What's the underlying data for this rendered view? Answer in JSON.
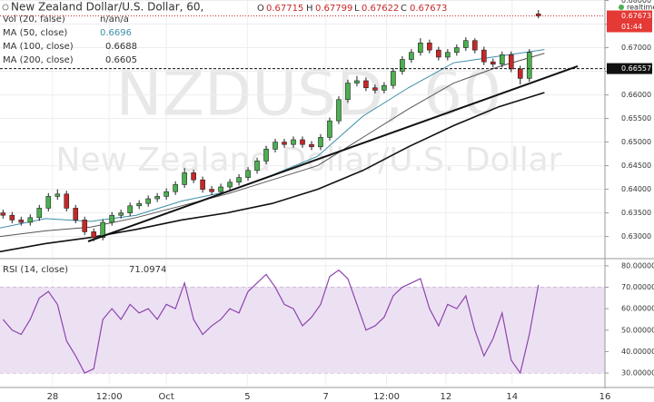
{
  "chart_data": [
    {
      "type": "candlestick",
      "title": "New Zealand Dollar/U.S. Dollar, 60,",
      "ohlc_labels": [
        "O",
        "H",
        "L",
        "C"
      ],
      "volume_label": "Vol (20, false)",
      "volume_values": [
        "n/a",
        "n/a"
      ],
      "realtime": "realtime",
      "watermark": [
        "NZDUSD, 60",
        "New Zealand Dollar/U.S. Dollar"
      ],
      "countdown": "01:44",
      "support_level": 0.66557,
      "up_color": "#4caf50",
      "down_color": "#c62828",
      "x": [
        1,
        4,
        7,
        10,
        13,
        16,
        19,
        22,
        25,
        28,
        31,
        34,
        37,
        40,
        43,
        46,
        49,
        52,
        55,
        58,
        61,
        64,
        67,
        70,
        73,
        76,
        79,
        82,
        85,
        88,
        91,
        94,
        97,
        100,
        103,
        106,
        109,
        112,
        115,
        118,
        121,
        124,
        127,
        130,
        133,
        136,
        139,
        142,
        145,
        148,
        151,
        154,
        157,
        160,
        163,
        166,
        169,
        172,
        175,
        178
      ],
      "open": [
        0.635,
        0.6345,
        0.6335,
        0.633,
        0.634,
        0.636,
        0.6385,
        0.639,
        0.636,
        0.6335,
        0.631,
        0.6298,
        0.633,
        0.6345,
        0.635,
        0.6365,
        0.637,
        0.638,
        0.6385,
        0.6395,
        0.641,
        0.6435,
        0.642,
        0.64,
        0.6395,
        0.6405,
        0.6415,
        0.6425,
        0.644,
        0.646,
        0.6485,
        0.65,
        0.6495,
        0.6505,
        0.6495,
        0.649,
        0.651,
        0.6545,
        0.659,
        0.6625,
        0.663,
        0.6615,
        0.661,
        0.662,
        0.665,
        0.6675,
        0.669,
        0.671,
        0.6695,
        0.668,
        0.669,
        0.67,
        0.6715,
        0.6695,
        0.667,
        0.6665,
        0.6685,
        0.6655,
        0.6635,
        0.67715
      ],
      "high": [
        0.6357,
        0.6352,
        0.6342,
        0.6347,
        0.6367,
        0.6392,
        0.64,
        0.6397,
        0.6367,
        0.6342,
        0.6317,
        0.6337,
        0.6352,
        0.6357,
        0.6372,
        0.6377,
        0.6387,
        0.6392,
        0.6402,
        0.6417,
        0.6445,
        0.6442,
        0.6427,
        0.6407,
        0.6412,
        0.6422,
        0.6432,
        0.6447,
        0.6467,
        0.6492,
        0.6507,
        0.6507,
        0.6512,
        0.6512,
        0.6502,
        0.6517,
        0.6552,
        0.6597,
        0.6632,
        0.664,
        0.6637,
        0.6622,
        0.6627,
        0.6657,
        0.6682,
        0.6697,
        0.672,
        0.6717,
        0.6702,
        0.6697,
        0.6707,
        0.6722,
        0.672,
        0.6702,
        0.6677,
        0.6692,
        0.6692,
        0.6662,
        0.6697,
        0.67799
      ],
      "low": [
        0.6338,
        0.6328,
        0.6323,
        0.6323,
        0.6333,
        0.6353,
        0.6378,
        0.6353,
        0.6328,
        0.6303,
        0.629,
        0.6292,
        0.6323,
        0.6338,
        0.6343,
        0.6358,
        0.6363,
        0.6373,
        0.6378,
        0.6388,
        0.6403,
        0.6413,
        0.6393,
        0.6388,
        0.6388,
        0.6398,
        0.6408,
        0.6418,
        0.6433,
        0.6453,
        0.6478,
        0.6488,
        0.6488,
        0.6488,
        0.6483,
        0.6483,
        0.6503,
        0.6538,
        0.6583,
        0.6618,
        0.6608,
        0.6603,
        0.6603,
        0.6613,
        0.6643,
        0.6668,
        0.6683,
        0.6688,
        0.6673,
        0.6673,
        0.6683,
        0.6693,
        0.6688,
        0.6663,
        0.6658,
        0.6658,
        0.6648,
        0.6622,
        0.6628,
        0.67622
      ],
      "close": [
        0.6345,
        0.6335,
        0.633,
        0.634,
        0.636,
        0.6385,
        0.639,
        0.636,
        0.6335,
        0.631,
        0.6298,
        0.633,
        0.6345,
        0.635,
        0.6365,
        0.637,
        0.638,
        0.6385,
        0.6395,
        0.641,
        0.6435,
        0.642,
        0.64,
        0.6395,
        0.6405,
        0.6415,
        0.6425,
        0.644,
        0.646,
        0.6485,
        0.65,
        0.6495,
        0.6505,
        0.6495,
        0.649,
        0.651,
        0.6545,
        0.659,
        0.6625,
        0.663,
        0.6615,
        0.661,
        0.662,
        0.665,
        0.6675,
        0.669,
        0.671,
        0.6695,
        0.668,
        0.669,
        0.67,
        0.6715,
        0.6695,
        0.667,
        0.6665,
        0.6685,
        0.6655,
        0.6635,
        0.669,
        0.67673
      ],
      "series": [
        {
          "name": "MA (50, close)",
          "color": "#3d8ea8",
          "x": [
            0,
            15,
            30,
            45,
            60,
            75,
            90,
            105,
            120,
            135,
            150,
            165,
            180
          ],
          "values": [
            0.6318,
            0.6338,
            0.6332,
            0.6345,
            0.6375,
            0.6395,
            0.643,
            0.647,
            0.6555,
            0.6615,
            0.6668,
            0.6682,
            0.6696
          ]
        },
        {
          "name": "MA (100, close)",
          "color": "#555555",
          "x": [
            0,
            15,
            30,
            45,
            60,
            75,
            90,
            105,
            120,
            135,
            150,
            165,
            180
          ],
          "values": [
            0.63,
            0.6312,
            0.632,
            0.634,
            0.6365,
            0.639,
            0.642,
            0.645,
            0.651,
            0.657,
            0.6625,
            0.666,
            0.6688
          ]
        },
        {
          "name": "MA (200, close)",
          "color": "#111111",
          "x": [
            0,
            15,
            30,
            45,
            60,
            75,
            90,
            105,
            120,
            135,
            150,
            165,
            180
          ],
          "values": [
            0.6268,
            0.6285,
            0.6298,
            0.6315,
            0.6335,
            0.635,
            0.637,
            0.64,
            0.644,
            0.649,
            0.6535,
            0.6575,
            0.6605
          ]
        }
      ],
      "xlim": [
        0,
        200
      ],
      "xticks": [
        {
          "value": 17.4,
          "label": "28"
        },
        {
          "value": 36.1,
          "label": "12:00"
        },
        {
          "value": 55,
          "label": "Oct"
        },
        {
          "value": 81.8,
          "label": "5"
        },
        {
          "value": 107.7,
          "label": "7"
        },
        {
          "value": 127.8,
          "label": "12:00"
        },
        {
          "value": 147.4,
          "label": "12"
        },
        {
          "value": 169.3,
          "label": "14"
        },
        {
          "value": 200,
          "label": "16"
        }
      ],
      "ylim": [
        0.6257,
        0.6801
      ],
      "yticks": [
        {
          "value": 0.63,
          "label": "0.63000"
        },
        {
          "value": 0.635,
          "label": "0.63500"
        },
        {
          "value": 0.64,
          "label": "0.64000"
        },
        {
          "value": 0.645,
          "label": "0.64500"
        },
        {
          "value": 0.65,
          "label": "0.65000"
        },
        {
          "value": 0.655,
          "label": "0.65500"
        },
        {
          "value": 0.66,
          "label": "0.66000"
        },
        {
          "value": 0.665,
          "label": "0.66500"
        },
        {
          "value": 0.67,
          "label": "0.67000"
        },
        {
          "value": 0.675,
          "label": "0.67500"
        },
        {
          "value": 0.68,
          "label": "0.68000"
        }
      ],
      "grid": true
    },
    {
      "type": "line",
      "title": "RSI (14, close)",
      "series": [
        {
          "name": "RSI",
          "color": "#8e44ad",
          "values": [
            55,
            50,
            48,
            55,
            65,
            68,
            62,
            45,
            38,
            30,
            32,
            55,
            60,
            55,
            62,
            58,
            60,
            55,
            62,
            60,
            72,
            55,
            48,
            52,
            55,
            60,
            58,
            68,
            72,
            76,
            70,
            62,
            60,
            52,
            56,
            62,
            75,
            78,
            74,
            62,
            50,
            52,
            56,
            66,
            70,
            72,
            74,
            60,
            52,
            62,
            60,
            66,
            50,
            38,
            46,
            58,
            36,
            30,
            48,
            71.0974
          ]
        }
      ],
      "band": [
        30,
        70
      ],
      "ylim": [
        24.1,
        82.5
      ],
      "yticks": [
        {
          "value": 30,
          "label": "30.00000"
        },
        {
          "value": 40,
          "label": "40.00000"
        },
        {
          "value": 50,
          "label": "50.00000"
        },
        {
          "value": 60,
          "label": "60.00000"
        },
        {
          "value": 70,
          "label": "70.00000"
        },
        {
          "value": 80,
          "label": "80.00000"
        }
      ],
      "grid": true
    }
  ]
}
